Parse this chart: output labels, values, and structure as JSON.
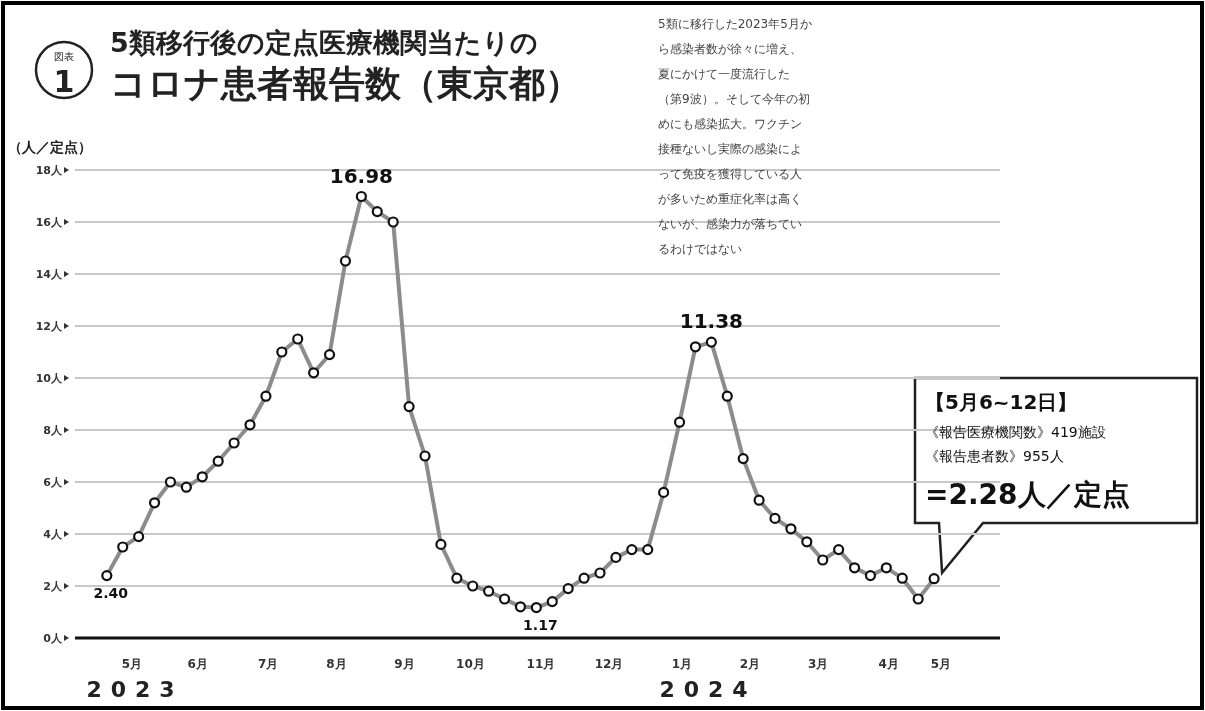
{
  "chart_data": {
    "type": "line",
    "title": "5類移行後の定点医療機関当たりの",
    "subtitle": "コロナ患者報告数（東京都）",
    "ylabel": "（人／定点）",
    "x": [
      "2023-05-14",
      "2023-05-21",
      "2023-05-28",
      "2023-06-04",
      "2023-06-11",
      "2023-06-18",
      "2023-06-25",
      "2023-07-02",
      "2023-07-09",
      "2023-07-16",
      "2023-07-23",
      "2023-07-30",
      "2023-08-06",
      "2023-08-13",
      "2023-08-20",
      "2023-08-27",
      "2023-09-03",
      "2023-09-10",
      "2023-09-17",
      "2023-09-24",
      "2023-10-01",
      "2023-10-08",
      "2023-10-15",
      "2023-10-22",
      "2023-10-29",
      "2023-11-05",
      "2023-11-12",
      "2023-11-19",
      "2023-11-26",
      "2023-12-03",
      "2023-12-10",
      "2023-12-17",
      "2023-12-24",
      "2023-12-31",
      "2024-01-07",
      "2024-01-14",
      "2024-01-21",
      "2024-01-28",
      "2024-02-04",
      "2024-02-11",
      "2024-02-18",
      "2024-02-25",
      "2024-03-03",
      "2024-03-10",
      "2024-03-17",
      "2024-03-24",
      "2024-03-31",
      "2024-04-07",
      "2024-04-14",
      "2024-04-21",
      "2024-04-28",
      "2024-05-05",
      "2024-05-12"
    ],
    "series": [
      {
        "color": "#8c8c8c",
        "values": [
          2.4,
          3.5,
          3.9,
          5.2,
          6.0,
          5.8,
          6.2,
          6.8,
          7.5,
          8.2,
          9.3,
          11.0,
          11.5,
          10.2,
          10.9,
          14.5,
          16.98,
          16.4,
          16.0,
          8.9,
          7.0,
          3.6,
          2.3,
          2.0,
          1.8,
          1.5,
          1.2,
          1.17,
          1.4,
          1.9,
          2.3,
          2.5,
          3.1,
          3.4,
          3.4,
          5.6,
          8.3,
          11.2,
          11.38,
          9.3,
          6.9,
          5.3,
          4.6,
          4.2,
          3.7,
          3.0,
          3.4,
          2.7,
          2.4,
          2.7,
          2.3,
          1.5,
          2.28
        ],
        "value_labels": [
          "2.40",
          null,
          null,
          null,
          null,
          null,
          null,
          null,
          null,
          null,
          null,
          null,
          null,
          null,
          null,
          null,
          "16.98",
          null,
          null,
          null,
          null,
          null,
          null,
          null,
          null,
          null,
          null,
          "1.17",
          null,
          null,
          null,
          null,
          null,
          null,
          null,
          null,
          null,
          null,
          "11.38",
          null,
          null,
          null,
          null,
          null,
          null,
          null,
          null,
          null,
          null,
          null,
          null,
          null,
          null
        ]
      }
    ],
    "xlim": [
      "2023-04-30",
      "2024-06-10"
    ],
    "xticks": [
      {
        "value": "2023-05-25",
        "label": "5月"
      },
      {
        "value": "2023-06-23",
        "label": "6月"
      },
      {
        "value": "2023-07-24",
        "label": "7月"
      },
      {
        "value": "2023-08-23",
        "label": "8月"
      },
      {
        "value": "2023-09-22",
        "label": "9月"
      },
      {
        "value": "2023-10-21",
        "label": "10月"
      },
      {
        "value": "2023-11-21",
        "label": "11月"
      },
      {
        "value": "2023-12-21",
        "label": "12月"
      },
      {
        "value": "2024-01-22",
        "label": "1月"
      },
      {
        "value": "2024-02-21",
        "label": "2月"
      },
      {
        "value": "2024-03-22",
        "label": "3月"
      },
      {
        "value": "2024-04-22",
        "label": "4月"
      },
      {
        "value": "2024-05-15",
        "label": "5月"
      }
    ],
    "ylim": [
      0,
      18
    ],
    "yticks": [
      {
        "value": 0,
        "label": "0人"
      },
      {
        "value": 2,
        "label": "2人"
      },
      {
        "value": 4,
        "label": "4人"
      },
      {
        "value": 6,
        "label": "6人"
      },
      {
        "value": 8,
        "label": "8人"
      },
      {
        "value": 10,
        "label": "10人"
      },
      {
        "value": 12,
        "label": "12人"
      },
      {
        "value": 14,
        "label": "14人"
      },
      {
        "value": 16,
        "label": "16人"
      },
      {
        "value": 18,
        "label": "18人"
      }
    ],
    "grid": "y",
    "marker": "circle",
    "annotations": [
      "図表",
      "1",
      "5類に移行した2023年5月か",
      "ら感染者数が徐々に増え、",
      "夏にかけて一度流行した",
      "（第9波）。そして今年の初",
      "めにも感染拡大。ワクチン",
      "接種ないし実際の感染によ",
      "って免疫を獲得している人",
      "が多いため重症化率は高く",
      "ないが、感染力が落ちてい",
      "るわけではない",
      "2023",
      "2024",
      "【5月6~12日】",
      "《報告医療機関数》419施設",
      "《報告患者数》955人",
      {
        "text": "=2.28人／定点",
        "x": "2024-05-12",
        "y": 2.28
      }
    ]
  }
}
